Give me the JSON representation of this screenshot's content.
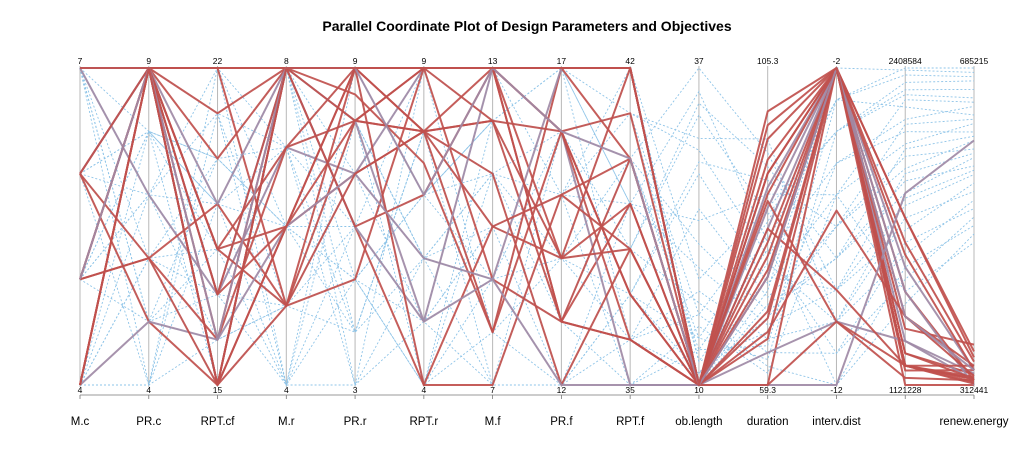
{
  "chart_data": {
    "type": "parallel_coordinates",
    "title": "Parallel Coordinate Plot of Design Parameters and Objectives",
    "axes": [
      {
        "name": "M.c",
        "min": "4",
        "max": "7"
      },
      {
        "name": "PR.c",
        "min": "4",
        "max": "9"
      },
      {
        "name": "RPT.cf",
        "min": "15",
        "max": "22"
      },
      {
        "name": "M.r",
        "min": "4",
        "max": "8"
      },
      {
        "name": "PR.r",
        "min": "3",
        "max": "9"
      },
      {
        "name": "RPT.r",
        "min": "4",
        "max": "9"
      },
      {
        "name": "M.f",
        "min": "7",
        "max": "13"
      },
      {
        "name": "PR.f",
        "min": "12",
        "max": "17"
      },
      {
        "name": "RPT.f",
        "min": "35",
        "max": "42"
      },
      {
        "name": "ob.length",
        "min": "10",
        "max": "37"
      },
      {
        "name": "duration",
        "min": "59.3",
        "max": "105.3"
      },
      {
        "name": "interv.dist",
        "min": "-12",
        "max": "-2"
      },
      {
        "name": "",
        "min": "1121228",
        "max": "2408584"
      },
      {
        "name": "renew.energy",
        "min": "312441",
        "max": "685215"
      }
    ],
    "highlighted_color": "#c0504d",
    "highlighted_secondary_color": "#a08aa6",
    "background_color": "#8ec4e8",
    "highlighted_lines": [
      [
        7,
        9,
        22,
        8,
        9,
        9,
        13,
        17,
        42,
        10,
        59.3,
        -2,
        1180000,
        330000
      ],
      [
        7,
        9,
        20,
        8,
        8.5,
        7.5,
        8,
        17,
        40,
        10,
        95,
        -2,
        1200000,
        320000
      ],
      [
        6,
        9,
        18,
        6,
        8,
        8,
        12,
        13,
        39,
        10,
        90,
        -2,
        1250000,
        325000
      ],
      [
        5,
        9,
        17,
        7,
        7,
        9,
        13,
        16,
        35,
        10,
        85,
        -2,
        1300000,
        318000
      ],
      [
        4,
        9,
        15,
        8,
        6,
        4,
        10,
        14,
        38,
        10,
        70,
        -2,
        1400000,
        335000
      ],
      [
        5,
        6,
        16,
        8,
        9,
        8,
        13,
        14,
        42,
        10,
        80,
        -2,
        1350000,
        360000
      ],
      [
        6,
        5,
        15,
        5,
        5,
        9,
        9,
        13,
        40,
        10,
        75,
        -2,
        1100000,
        312441
      ],
      [
        7,
        7,
        17,
        8,
        6,
        5,
        9,
        17,
        42,
        10,
        88,
        -2,
        1600000,
        330000
      ],
      [
        5,
        9,
        15,
        6,
        7,
        8,
        8,
        16,
        36,
        10,
        66,
        -2,
        1500000,
        318000
      ],
      [
        4,
        9,
        18,
        5,
        8,
        8,
        11,
        12,
        38,
        10,
        92,
        -2,
        1200000,
        322000
      ],
      [
        7,
        9,
        16,
        7,
        9,
        8,
        12,
        16,
        41,
        10,
        78,
        -2,
        1700000,
        340000
      ],
      [
        6,
        9,
        15,
        8,
        8,
        5,
        13,
        17,
        42,
        10,
        82,
        -2,
        1500000,
        310000
      ],
      [
        7,
        9,
        22,
        8,
        9,
        9,
        13,
        13,
        36,
        10,
        86,
        -10,
        1150000,
        318000
      ],
      [
        5,
        6,
        19,
        5,
        9,
        4,
        7,
        15,
        40,
        10,
        69,
        -2,
        1800000,
        345000
      ],
      [
        7,
        9,
        21,
        8,
        6,
        7,
        13,
        16,
        37,
        10,
        76,
        -2,
        1650000,
        330000
      ],
      [
        4,
        5,
        16,
        6,
        7,
        6,
        9,
        12,
        35,
        10,
        64,
        -10,
        1300000,
        326000
      ],
      [
        6,
        9,
        17,
        8,
        8,
        9,
        13,
        17,
        42,
        10,
        99,
        -2,
        1250000,
        320000
      ],
      [
        7,
        9,
        15,
        6,
        9,
        9,
        12,
        14,
        39,
        10,
        87,
        -2,
        1200000,
        335000
      ],
      [
        5,
        9,
        22,
        5,
        7,
        8,
        10,
        15,
        38,
        10,
        67,
        -6.5,
        1400000,
        323000
      ],
      [
        7,
        9,
        19,
        8,
        9,
        9,
        13,
        17,
        42,
        10,
        59.3,
        -12,
        1900000,
        600000
      ],
      [
        4,
        9,
        18,
        7,
        8,
        9,
        13,
        16,
        37,
        10,
        82,
        -9,
        1200000,
        314000
      ],
      [
        6,
        6,
        15,
        8,
        9,
        9,
        13,
        13,
        36,
        10,
        59.3,
        -10,
        1200000,
        316000
      ],
      [
        7,
        9,
        17,
        6,
        9,
        9,
        13,
        17,
        42,
        10,
        90,
        -2,
        1800000,
        352000
      ],
      [
        5,
        9,
        16,
        8,
        9,
        7,
        13,
        16,
        40,
        10,
        75,
        -2,
        1400000,
        330000
      ],
      [
        4,
        9,
        15,
        8,
        9,
        9,
        13,
        17,
        42,
        10,
        97,
        -2,
        1200000,
        319000
      ]
    ],
    "background_lines": [
      [
        7,
        8,
        20,
        6,
        7,
        6,
        11,
        15,
        39,
        35,
        80,
        -3,
        2408584,
        685215
      ],
      [
        5,
        7,
        21,
        5,
        6,
        7,
        12,
        16,
        38,
        33,
        84,
        -4,
        2350000,
        670000
      ],
      [
        6,
        8,
        19,
        4,
        5,
        5,
        10,
        15,
        41,
        30,
        78,
        -5,
        2200000,
        640000
      ],
      [
        4,
        6,
        17,
        7,
        8,
        6,
        9,
        14,
        37,
        28,
        74,
        -6,
        2100000,
        620000
      ],
      [
        7,
        7,
        16,
        5,
        4,
        8,
        8,
        12,
        36,
        25,
        72,
        -7,
        2000000,
        600000
      ],
      [
        5,
        8,
        18,
        6,
        5,
        7,
        11,
        13,
        40,
        22,
        70,
        -8,
        1900000,
        580000
      ],
      [
        6,
        5,
        20,
        8,
        9,
        4,
        12,
        17,
        39,
        20,
        68,
        -9,
        1850000,
        560000
      ],
      [
        4,
        4,
        22,
        7,
        3,
        6,
        10,
        14,
        36,
        18,
        66,
        -10,
        1800000,
        540000
      ],
      [
        6,
        6,
        15,
        6,
        6,
        5,
        9,
        12,
        38,
        17,
        64,
        -11,
        1700000,
        520000
      ],
      [
        7,
        9,
        18,
        5,
        7,
        9,
        13,
        16,
        41,
        16,
        62,
        -12,
        1600000,
        500000
      ],
      [
        5,
        7,
        17,
        4,
        3,
        5,
        7,
        15,
        35,
        15,
        61,
        -6,
        1500000,
        480000
      ],
      [
        4,
        8,
        19,
        8,
        4,
        8,
        11,
        12,
        37,
        14,
        63,
        -4,
        2300000,
        650000
      ],
      [
        6,
        4,
        21,
        7,
        8,
        6,
        9,
        16,
        40,
        13,
        65,
        -3,
        2250000,
        630000
      ],
      [
        7,
        5,
        16,
        5,
        5,
        4,
        8,
        14,
        42,
        12,
        67,
        -5,
        2150000,
        610000
      ],
      [
        5,
        6,
        20,
        6,
        9,
        7,
        12,
        13,
        36,
        11,
        69,
        -7,
        2050000,
        590000
      ],
      [
        4,
        9,
        22,
        4,
        6,
        9,
        13,
        17,
        39,
        10,
        71,
        -8,
        1950000,
        570000
      ],
      [
        6,
        8,
        15,
        8,
        7,
        5,
        10,
        15,
        38,
        10,
        73,
        -2,
        2400000,
        680000
      ],
      [
        7,
        6,
        18,
        7,
        4,
        8,
        7,
        12,
        37,
        11,
        75,
        -9,
        1750000,
        550000
      ],
      [
        5,
        5,
        17,
        5,
        8,
        6,
        11,
        16,
        41,
        12,
        77,
        -10,
        1650000,
        530000
      ],
      [
        4,
        7,
        19,
        6,
        5,
        4,
        9,
        13,
        35,
        13,
        79,
        -11,
        1550000,
        510000
      ],
      [
        6,
        9,
        21,
        4,
        9,
        7,
        12,
        14,
        40,
        14,
        81,
        -12,
        1450000,
        490000
      ],
      [
        7,
        4,
        16,
        8,
        3,
        9,
        8,
        17,
        36,
        16,
        83,
        -3,
        2380000,
        675000
      ],
      [
        5,
        8,
        20,
        7,
        6,
        5,
        13,
        15,
        42,
        19,
        85,
        -4,
        2320000,
        660000
      ],
      [
        4,
        6,
        15,
        5,
        7,
        8,
        10,
        12,
        39,
        24,
        87,
        -6,
        2280000,
        645000
      ],
      [
        6,
        7,
        22,
        6,
        4,
        6,
        7,
        16,
        37,
        29,
        89,
        -7,
        2180000,
        625000
      ],
      [
        7,
        5,
        18,
        4,
        8,
        4,
        11,
        14,
        38,
        34,
        91,
        -8,
        2080000,
        605000
      ],
      [
        5,
        9,
        17,
        8,
        5,
        7,
        9,
        13,
        40,
        37,
        93,
        -9,
        1980000,
        585000
      ],
      [
        4,
        4,
        19,
        7,
        9,
        9,
        12,
        17,
        41,
        31,
        95,
        -10,
        1880000,
        565000
      ]
    ]
  }
}
